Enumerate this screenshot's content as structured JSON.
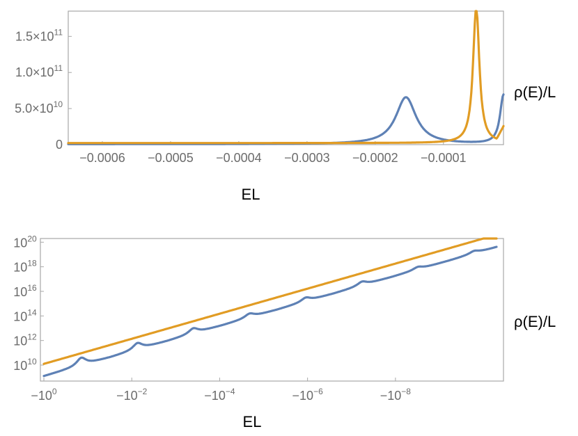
{
  "chart_data": [
    {
      "type": "line",
      "xlabel": "EL",
      "ylabel": "ρ(E)/L",
      "xlim": [
        -0.00065,
        -1.2e-05
      ],
      "ylim": [
        0,
        185000000000
      ],
      "x_ticks": [
        -0.0006,
        -0.0005,
        -0.0004,
        -0.0003,
        -0.0002,
        -0.0001
      ],
      "x_tick_labels": [
        "−0.0006",
        "−0.0005",
        "−0.0004",
        "−0.0003",
        "−0.0002",
        "−0.0001"
      ],
      "y_ticks": [
        0,
        50000000000,
        100000000000,
        150000000000
      ],
      "y_tick_labels": [
        {
          "base": "0",
          "exp": ""
        },
        {
          "base": "5.0×10",
          "exp": "10"
        },
        {
          "base": "1.0×10",
          "exp": "11"
        },
        {
          "base": "1.5×10",
          "exp": "11"
        }
      ],
      "series": [
        {
          "color": "#5e81b5",
          "peaks": [
            {
              "x": -0.000155,
              "y": 65000000000,
              "width": 1.8e-05
            },
            {
              "x": -1.2e-05,
              "y": 68000000000,
              "width": 6e-06
            }
          ],
          "baseline": 600000000
        },
        {
          "color": "#e19c24",
          "peaks": [
            {
              "x": -5.2e-05,
              "y": 190000000000,
              "width": 5.5e-06
            }
          ],
          "baseline": 2200000000,
          "end_value": 20000000000
        }
      ]
    },
    {
      "type": "line",
      "xlabel": "EL",
      "ylabel": "ρ(E)/L",
      "x_scale": "log (-EL, decreasing magnitude)",
      "xlim_log10_abs": [
        0,
        -10.3
      ],
      "ylim_log10": [
        8.7,
        20.3
      ],
      "x_ticks_log10_abs": [
        0,
        -2,
        -4,
        -6,
        -8
      ],
      "x_tick_labels": [
        {
          "base": "−10",
          "exp": "0"
        },
        {
          "base": "−10",
          "exp": "−2"
        },
        {
          "base": "−10",
          "exp": "−4"
        },
        {
          "base": "−10",
          "exp": "−6"
        },
        {
          "base": "−10",
          "exp": "−8"
        }
      ],
      "y_ticks_log10": [
        10,
        12,
        14,
        16,
        18,
        20
      ],
      "y_tick_labels": [
        {
          "base": "10",
          "exp": "10"
        },
        {
          "base": "10",
          "exp": "12"
        },
        {
          "base": "10",
          "exp": "14"
        },
        {
          "base": "10",
          "exp": "16"
        },
        {
          "base": "10",
          "exp": "18"
        },
        {
          "base": "10",
          "exp": "20"
        }
      ],
      "series": [
        {
          "color": "#5e81b5",
          "peaks_log10_abs_x": [
            -0.85,
            -2.13,
            -3.4,
            -4.68,
            -5.96,
            -7.24,
            -8.51,
            -9.79
          ],
          "peak_heights_log10": [
            10.6,
            11.8,
            13.0,
            14.2,
            15.5,
            16.8,
            18.0,
            19.3
          ],
          "start_log10_y": 9.1
        },
        {
          "color": "#e19c24",
          "peaks_log10_abs_x": [
            -1.28,
            -2.55,
            -3.83,
            -5.1,
            -6.38,
            -7.66,
            -8.94,
            -10.21
          ],
          "peak_heights_log10": [
            10.2,
            11.5,
            12.7,
            13.9,
            15.2,
            16.5,
            17.8,
            19.7
          ],
          "start_log10_y": 10.1
        }
      ]
    }
  ]
}
